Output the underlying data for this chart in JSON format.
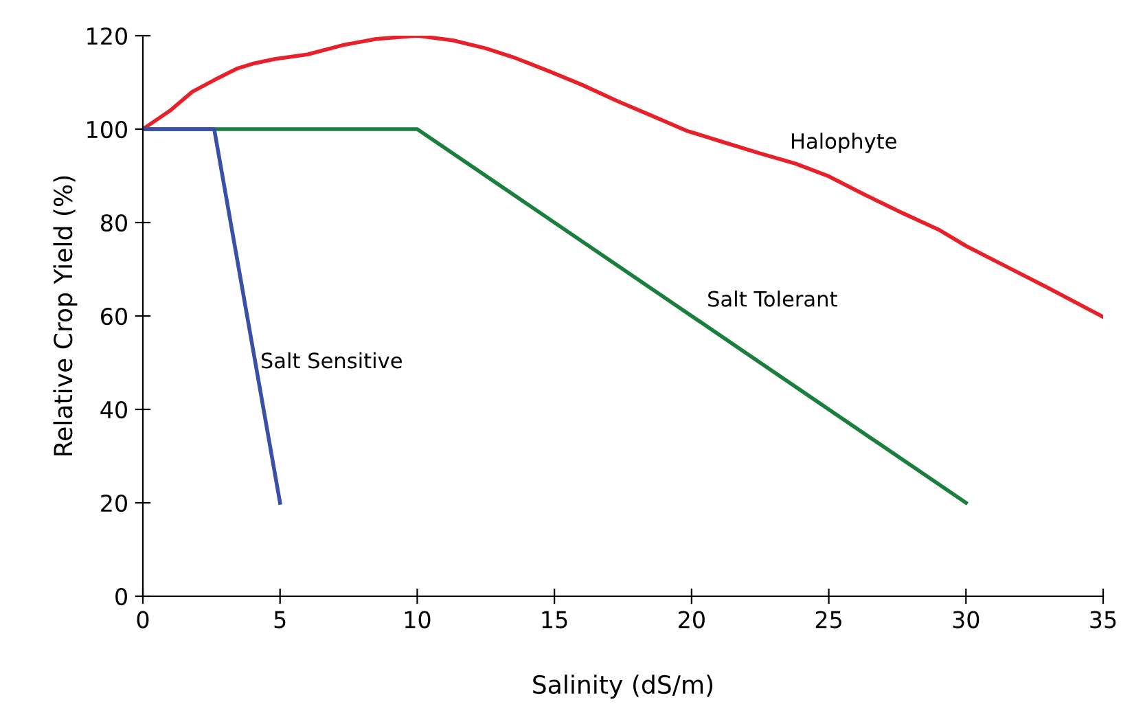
{
  "chart_data": {
    "type": "line",
    "xlabel": "Salinity (dS/m)",
    "ylabel": "Relative Crop Yield (%)",
    "xlim": [
      0,
      35
    ],
    "ylim": [
      0,
      120
    ],
    "xticks": [
      0,
      5,
      10,
      15,
      20,
      25,
      30,
      35
    ],
    "yticks": [
      0,
      20,
      40,
      60,
      80,
      100,
      120
    ],
    "grid": false,
    "legend": false,
    "marker": "none",
    "line_style": "solid",
    "series": [
      {
        "name": "Halophyte",
        "color": "#e8202a",
        "x": [
          0,
          1,
          1.8,
          2.6,
          3.45,
          4,
          4.8,
          6,
          7.3,
          8.5,
          10,
          11.3,
          12.5,
          13.5,
          14.8,
          16,
          17.3,
          18.5,
          19.8,
          21,
          22.5,
          23.8,
          25,
          26.3,
          27.7,
          29,
          30,
          31.5,
          33,
          35
        ],
        "values": [
          100,
          104,
          108,
          110.5,
          113,
          114,
          115,
          116,
          118,
          119.3,
          120,
          119,
          117.3,
          115.4,
          112.4,
          109.5,
          106,
          103,
          99.7,
          97.5,
          94.8,
          92.6,
          89.9,
          86,
          82,
          78.5,
          75,
          70.5,
          66,
          59.8
        ]
      },
      {
        "name": "Salt Tolerant",
        "color": "#1a7f3c",
        "x": [
          0,
          10,
          30
        ],
        "values": [
          100,
          100,
          20
        ]
      },
      {
        "name": "Salt Sensitive",
        "color": "#3a4fa8",
        "x": [
          0,
          2.6,
          5
        ],
        "values": [
          100,
          100,
          20
        ]
      }
    ]
  }
}
